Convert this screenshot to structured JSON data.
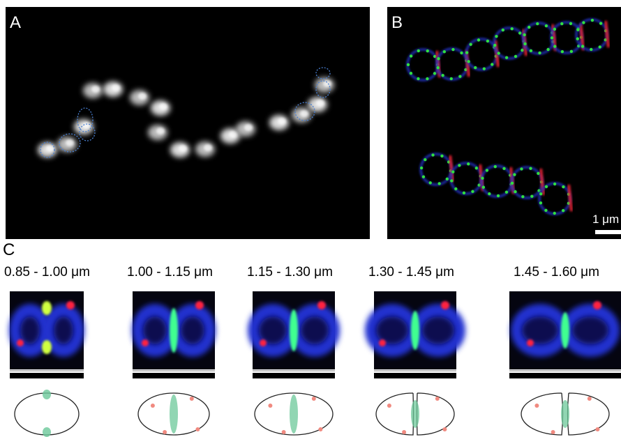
{
  "panels": [
    {
      "label": "A"
    },
    {
      "label": "B",
      "scale_bar": "1 μm"
    },
    {
      "label": "C",
      "stages": [
        "0.85 - 1.00 μm",
        "1.00 - 1.15 μm",
        "1.15 - 1.30 μm",
        "1.30 - 1.45 μm",
        "1.45 - 1.60 μm"
      ]
    }
  ]
}
